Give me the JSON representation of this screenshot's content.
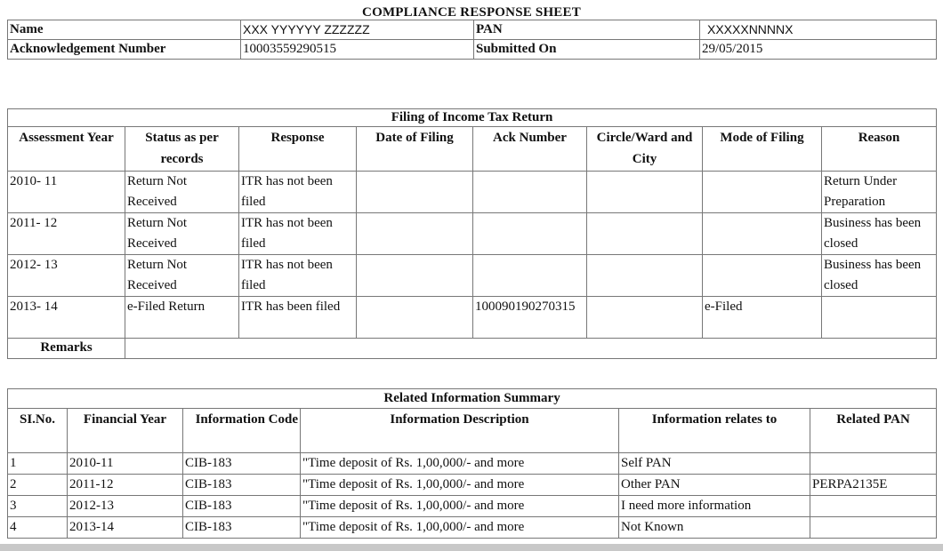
{
  "title": "COMPLIANCE RESPONSE SHEET",
  "header": {
    "name_label": "Name",
    "name_value": "XXX  YYYYYY ZZZZZZ",
    "pan_label": "PAN",
    "pan_value": "XXXXXNNNNX",
    "ack_label": "Acknowledgement Number",
    "ack_value": "10003559290515",
    "submitted_label": "Submitted On",
    "submitted_value": "29/05/2015"
  },
  "filing": {
    "title": "Filing of Income Tax Return",
    "columns": [
      "Assessment Year",
      "Status as per records",
      "Response",
      "Date of Filing",
      "Ack Number",
      "Circle/Ward and City",
      "Mode of Filing",
      "Reason"
    ],
    "rows": [
      [
        "2010- 11",
        "Return Not Received",
        "ITR has not been filed",
        "",
        "",
        "",
        "",
        "Return Under Preparation"
      ],
      [
        "2011- 12",
        "Return Not Received",
        "ITR has not been filed",
        "",
        "",
        "",
        "",
        "Business has been closed"
      ],
      [
        "2012- 13",
        "Return Not Received",
        "ITR has not been filed",
        "",
        "",
        "",
        "",
        "Business has been closed"
      ],
      [
        "2013- 14",
        "e-Filed Return",
        "ITR has been filed",
        "",
        "100090190270315",
        "",
        "e-Filed",
        ""
      ]
    ],
    "remarks_label": "Remarks",
    "remarks_value": ""
  },
  "related": {
    "title": "Related Information Summary",
    "columns": [
      "SI.No.",
      "Financial Year",
      "Information Code",
      "Information Description",
      "Information relates to",
      "Related PAN"
    ],
    "rows": [
      [
        "1",
        "2010-11",
        "CIB-183",
        "\"Time deposit of Rs. 1,00,000/- and more",
        "Self PAN",
        ""
      ],
      [
        "2",
        "2011-12",
        "CIB-183",
        "\"Time deposit of Rs. 1,00,000/- and more",
        "Other PAN",
        "PERPA2135E"
      ],
      [
        "3",
        "2012-13",
        "CIB-183",
        "\"Time deposit of Rs. 1,00,000/- and more",
        "I need more information",
        ""
      ],
      [
        "4",
        "2013-14",
        "CIB-183",
        "\"Time deposit of Rs. 1,00,000/- and more",
        "Not Known",
        ""
      ]
    ]
  }
}
